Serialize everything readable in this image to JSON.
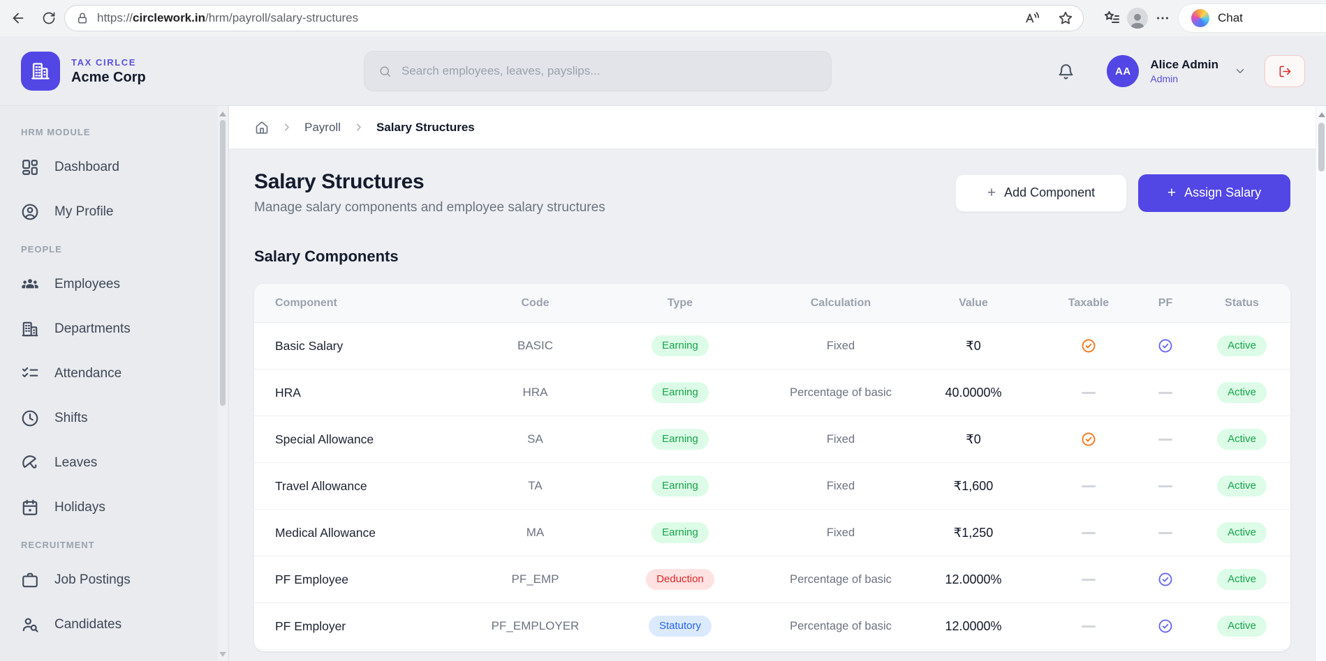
{
  "browser": {
    "url_protocol": "https://",
    "url_domain": "circlework.in",
    "url_path": "/hrm/payroll/salary-structures",
    "chat_label": "Chat"
  },
  "header": {
    "org_label": "TAX CIRLCE",
    "org_name": "Acme Corp",
    "search_placeholder": "Search employees, leaves, payslips...",
    "user_initials": "AA",
    "user_name": "Alice Admin",
    "user_role": "Admin"
  },
  "sidebar": {
    "sections": [
      {
        "label": "HRM MODULE",
        "items": [
          {
            "icon": "dashboard-icon",
            "label": "Dashboard"
          },
          {
            "icon": "user-circle-icon",
            "label": "My Profile"
          }
        ]
      },
      {
        "label": "PEOPLE",
        "items": [
          {
            "icon": "users-icon",
            "label": "Employees"
          },
          {
            "icon": "building-icon",
            "label": "Departments"
          },
          {
            "icon": "checklist-icon",
            "label": "Attendance"
          },
          {
            "icon": "clock-icon",
            "label": "Shifts"
          },
          {
            "icon": "umbrella-icon",
            "label": "Leaves"
          },
          {
            "icon": "calendar-icon",
            "label": "Holidays"
          }
        ]
      },
      {
        "label": "RECRUITMENT",
        "items": [
          {
            "icon": "briefcase-icon",
            "label": "Job Postings"
          },
          {
            "icon": "user-search-icon",
            "label": "Candidates"
          }
        ]
      }
    ]
  },
  "breadcrumb": {
    "items": [
      "Payroll",
      "Salary Structures"
    ]
  },
  "page": {
    "title": "Salary Structures",
    "subtitle": "Manage salary components and employee salary structures",
    "add_component_label": "Add Component",
    "assign_salary_label": "Assign Salary",
    "section_title": "Salary Components"
  },
  "table": {
    "columns": [
      "Component",
      "Code",
      "Type",
      "Calculation",
      "Value",
      "Taxable",
      "PF",
      "Status"
    ],
    "rows": [
      {
        "component": "Basic Salary",
        "code": "BASIC",
        "type": "Earning",
        "calculation": "Fixed",
        "value": "₹0",
        "taxable": "check",
        "pf": "check",
        "status": "Active"
      },
      {
        "component": "HRA",
        "code": "HRA",
        "type": "Earning",
        "calculation": "Percentage of basic",
        "value": "40.0000%",
        "taxable": "dash",
        "pf": "dash",
        "status": "Active"
      },
      {
        "component": "Special Allowance",
        "code": "SA",
        "type": "Earning",
        "calculation": "Fixed",
        "value": "₹0",
        "taxable": "check",
        "pf": "dash",
        "status": "Active"
      },
      {
        "component": "Travel Allowance",
        "code": "TA",
        "type": "Earning",
        "calculation": "Fixed",
        "value": "₹1,600",
        "taxable": "dash",
        "pf": "dash",
        "status": "Active"
      },
      {
        "component": "Medical Allowance",
        "code": "MA",
        "type": "Earning",
        "calculation": "Fixed",
        "value": "₹1,250",
        "taxable": "dash",
        "pf": "dash",
        "status": "Active"
      },
      {
        "component": "PF Employee",
        "code": "PF_EMP",
        "type": "Deduction",
        "calculation": "Percentage of basic",
        "value": "12.0000%",
        "taxable": "dash",
        "pf": "check",
        "status": "Active"
      },
      {
        "component": "PF Employer",
        "code": "PF_EMPLOYER",
        "type": "Statutory",
        "calculation": "Percentage of basic",
        "value": "12.0000%",
        "taxable": "dash",
        "pf": "check",
        "status": "Active"
      }
    ]
  },
  "colors": {
    "accent": "#5246e5",
    "taxable_check": "#f97316",
    "pf_check": "#6366f1",
    "pills": {
      "Earning": {
        "bg": "#dcfce7",
        "fg": "#16a34a"
      },
      "Deduction": {
        "bg": "#fee2e2",
        "fg": "#dc2626"
      },
      "Statutory": {
        "bg": "#dbeafe",
        "fg": "#2563eb"
      },
      "Active": {
        "bg": "#dcfce7",
        "fg": "#16a34a"
      }
    }
  }
}
